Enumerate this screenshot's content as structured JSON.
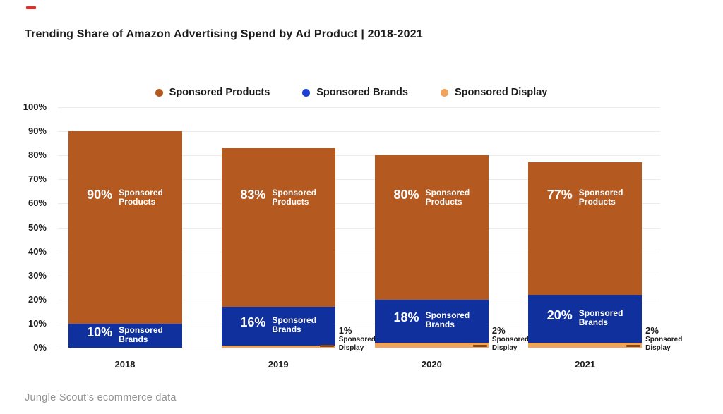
{
  "header": {
    "title": "Trending Share of Amazon Advertising Spend by Ad Product | 2018-2021",
    "accent_mark_color": "#ee2a26"
  },
  "footer": {
    "source": "Jungle Scout’s ecommerce data"
  },
  "colors": {
    "sponsored_products": "#b45a21",
    "sponsored_brands": "#10309e",
    "sponsored_display": "#f2a45c",
    "brands_legend_dot": "#1d3fd1",
    "annotation_dash": "#8a470f",
    "gridline": "#ececee",
    "text_dark": "#1c1c1c",
    "text_muted": "#929292"
  },
  "chart_data": {
    "type": "bar",
    "stacked": true,
    "title": "Trending Share of Amazon Advertising Spend by Ad Product | 2018-2021",
    "xlabel": "",
    "ylabel": "",
    "ylim": [
      0,
      100
    ],
    "grid": true,
    "legend_position": "top",
    "categories": [
      "2018",
      "2019",
      "2020",
      "2021"
    ],
    "series": [
      {
        "name": "Sponsored Products",
        "color": "#b45a21",
        "legend_dot_color": "#b45a21",
        "values": [
          90,
          83,
          80,
          77
        ]
      },
      {
        "name": "Sponsored Brands",
        "color": "#10309e",
        "legend_dot_color": "#1d3fd1",
        "values": [
          10,
          16,
          18,
          20
        ]
      },
      {
        "name": "Sponsored Display",
        "color": "#f2a45c",
        "legend_dot_color": "#f2a45c",
        "values": [
          0,
          1,
          2,
          2
        ]
      }
    ],
    "y_ticks": [
      "100%",
      "90%",
      "80%",
      "70%",
      "60%",
      "50%",
      "40%",
      "30%",
      "20%",
      "10%",
      "0%"
    ],
    "bars": [
      {
        "category": "2018",
        "products": {
          "pct": 90,
          "pct_label": "90%",
          "name_lines": [
            "Sponsored",
            "Products"
          ]
        },
        "brands": {
          "pct": 10,
          "pct_label": "10%",
          "name_lines": [
            "Sponsored",
            "Brands"
          ]
        },
        "display": {
          "pct": 0
        },
        "outside_annotation": null
      },
      {
        "category": "2019",
        "products": {
          "pct": 83,
          "pct_label": "83%",
          "name_lines": [
            "Sponsored",
            "Products"
          ]
        },
        "brands": {
          "pct": 16,
          "pct_label": "16%",
          "name_lines": [
            "Sponsored",
            "Brands"
          ]
        },
        "display": {
          "pct": 1
        },
        "outside_annotation": {
          "pct_label": "1%",
          "name_lines": [
            "Sponsored",
            "Display"
          ]
        }
      },
      {
        "category": "2020",
        "products": {
          "pct": 80,
          "pct_label": "80%",
          "name_lines": [
            "Sponsored",
            "Products"
          ]
        },
        "brands": {
          "pct": 18,
          "pct_label": "18%",
          "name_lines": [
            "Sponsored",
            "Brands"
          ]
        },
        "display": {
          "pct": 2
        },
        "outside_annotation": {
          "pct_label": "2%",
          "name_lines": [
            "Sponsored",
            "Display"
          ]
        }
      },
      {
        "category": "2021",
        "products": {
          "pct": 77,
          "pct_label": "77%",
          "name_lines": [
            "Sponsored",
            "Products"
          ]
        },
        "brands": {
          "pct": 20,
          "pct_label": "20%",
          "name_lines": [
            "Sponsored",
            "Brands"
          ]
        },
        "display": {
          "pct": 2
        },
        "outside_annotation": {
          "pct_label": "2%",
          "name_lines": [
            "Sponsored",
            "Display"
          ]
        }
      }
    ]
  }
}
